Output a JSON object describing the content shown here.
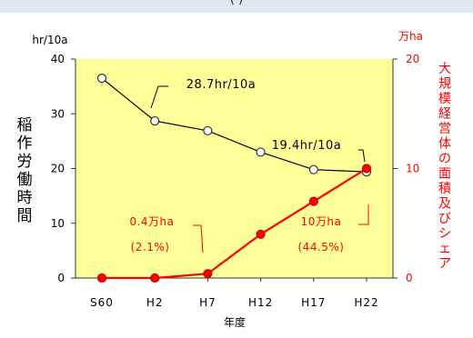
{
  "header": {
    "text": "(     )"
  },
  "chart_data": {
    "type": "line",
    "categories": [
      "S60",
      "H2",
      "H7",
      "H12",
      "H17",
      "H22"
    ],
    "xlabel": "年度",
    "y_left": {
      "label": "稲作労働時間",
      "unit": "hr/10a",
      "ylim": [
        0,
        40
      ],
      "ticks": [
        0,
        10,
        20,
        30,
        40
      ]
    },
    "y_right": {
      "label": "大規模経営体の面積及びシェア",
      "unit": "万ha",
      "ylim": [
        0,
        20
      ],
      "ticks": [
        0,
        10,
        20
      ]
    },
    "grid": false,
    "series": [
      {
        "axis": "left",
        "values": [
          36.5,
          28.7,
          26.9,
          23.0,
          19.8,
          19.4
        ],
        "color": "#000000",
        "marker_fill": "#ffffff"
      },
      {
        "axis": "right",
        "values": [
          0,
          0,
          0.4,
          4.0,
          7.0,
          10.0
        ],
        "color": "#ff0000",
        "marker_fill": "#ff0000"
      }
    ],
    "annotations": [
      {
        "text": "28.7hr/10a",
        "color": "#000000"
      },
      {
        "text": "19.4hr/10a",
        "color": "#000000"
      },
      {
        "text": "0.4万ha",
        "color": "#ff0000"
      },
      {
        "text": "(2.1%)",
        "color": "#ff0000"
      },
      {
        "text": "10万ha",
        "color": "#ff0000"
      },
      {
        "text": "(44.5%)",
        "color": "#ff0000"
      }
    ],
    "colors": {
      "plot_bg": "#ffff99",
      "left_axis_text": "#000000",
      "right_axis_text": "#ff0000"
    }
  }
}
